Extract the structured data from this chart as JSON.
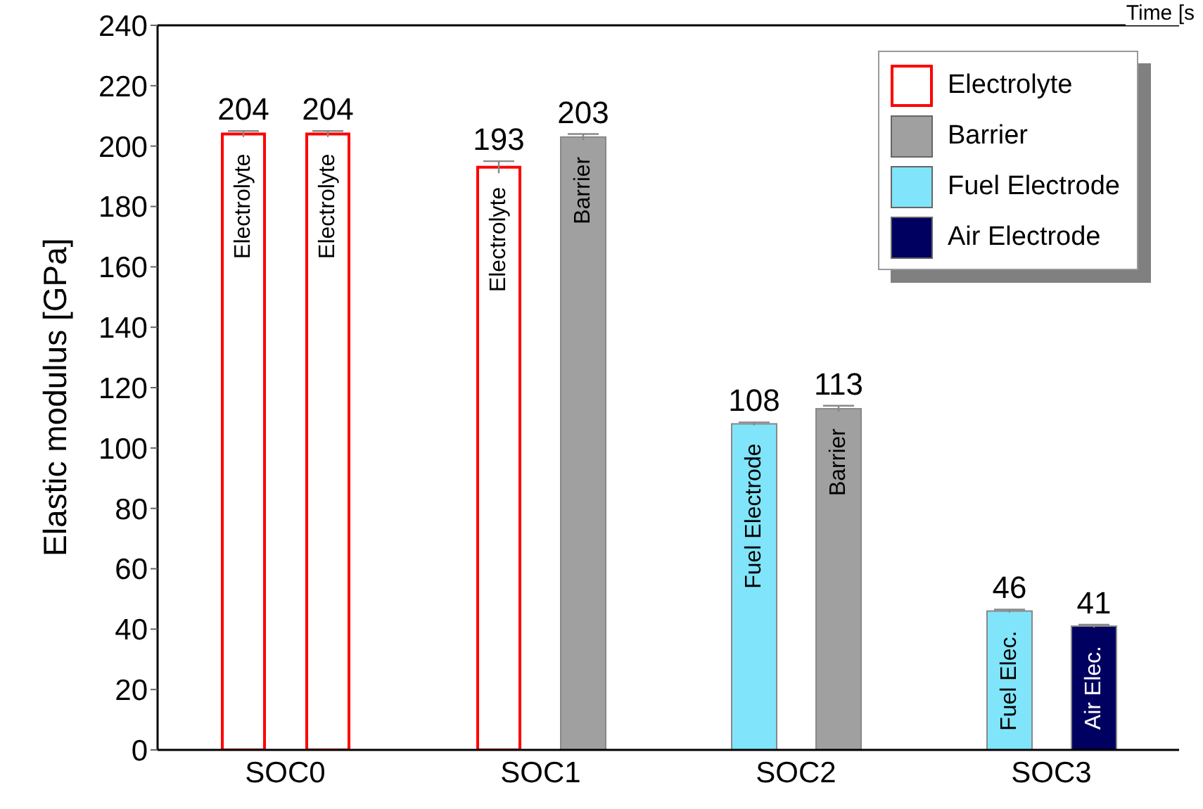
{
  "chart_data": {
    "type": "bar",
    "ylabel": "Elastic modulus [GPa]",
    "categories": [
      "SOC0",
      "SOC1",
      "SOC2",
      "SOC3"
    ],
    "ylim": [
      0,
      240
    ],
    "yticks": [
      0,
      20,
      40,
      60,
      80,
      100,
      120,
      140,
      160,
      180,
      200,
      220,
      240
    ],
    "series": [
      {
        "colors": [
          "#ff0000",
          "#ff0000",
          "#80e4fa",
          "#80e4fa"
        ],
        "values": [
          204,
          193,
          108,
          46
        ],
        "errors": [
          1,
          2,
          0.5,
          0.5
        ]
      },
      {
        "colors": [
          "#ff0000",
          "#a0a0a0",
          "#a0a0a0",
          "#000060"
        ],
        "values": [
          204,
          203,
          113,
          41
        ],
        "errors": [
          1,
          1,
          1,
          0.5
        ]
      },
      {
        "name": "Electrolyte",
        "color": "#ff0000",
        "values": [
          null,
          null,
          null,
          null
        ]
      },
      {
        "name": "Barrier",
        "color": "#a0a0a0",
        "values": [
          null,
          null,
          null,
          null
        ]
      },
      {
        "name": "Fuel Electrode",
        "color": "#80e4fa",
        "values": [
          null,
          null,
          null,
          null
        ]
      },
      {
        "name": "Air Electrode",
        "color": "#000060",
        "values": [
          null,
          null,
          null,
          null
        ]
      }
    ],
    "data_labels": true,
    "legend": "top right",
    "annotations": [
      "Electrolyte",
      "Electrolyte",
      "Electrolyte",
      "Barrier",
      "Fuel Electrode",
      "Barrier",
      "Fuel Elec.",
      "Air Elec.",
      "Time [s"
    ]
  }
}
